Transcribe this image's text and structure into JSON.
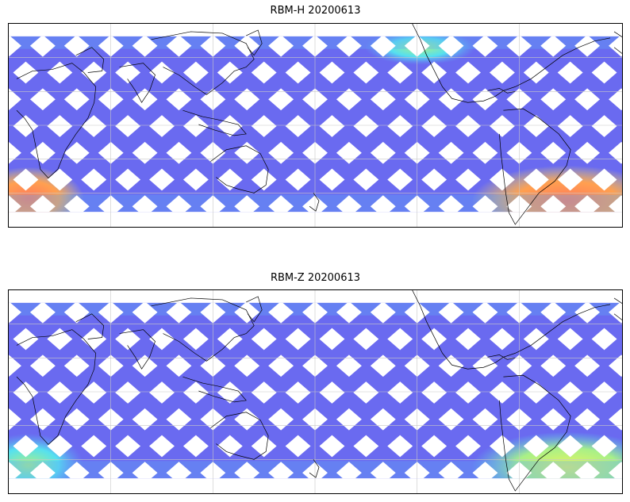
{
  "panels": [
    {
      "title": "RBM-H 20200613",
      "colors": {
        "base": "#6a6af0",
        "light": "#5fa8f5",
        "cyan": "#55e0f0",
        "green": "#a8f088",
        "yellow": "#f5e060",
        "orange": "#ffa050",
        "red": "#ff7a5a"
      },
      "hotspots": [
        {
          "region": "south-america-south-atlantic",
          "level": "high"
        },
        {
          "region": "south-indian-ocean-west",
          "level": "high"
        },
        {
          "region": "north-atlantic-north",
          "level": "medium-low"
        }
      ]
    },
    {
      "title": "RBM-Z 20200613",
      "colors": {
        "base": "#6a6af0",
        "light": "#5fa8f5",
        "cyan": "#55e0f0",
        "green": "#a8f088",
        "yellow": "#e6f560"
      },
      "hotspots": [
        {
          "region": "south-america-south-atlantic",
          "level": "medium"
        },
        {
          "region": "south-indian-ocean-west",
          "level": "medium-low"
        }
      ]
    }
  ],
  "gridlines": {
    "shown": true,
    "color": "#c8c8c8"
  },
  "coastline_color": "#000000"
}
